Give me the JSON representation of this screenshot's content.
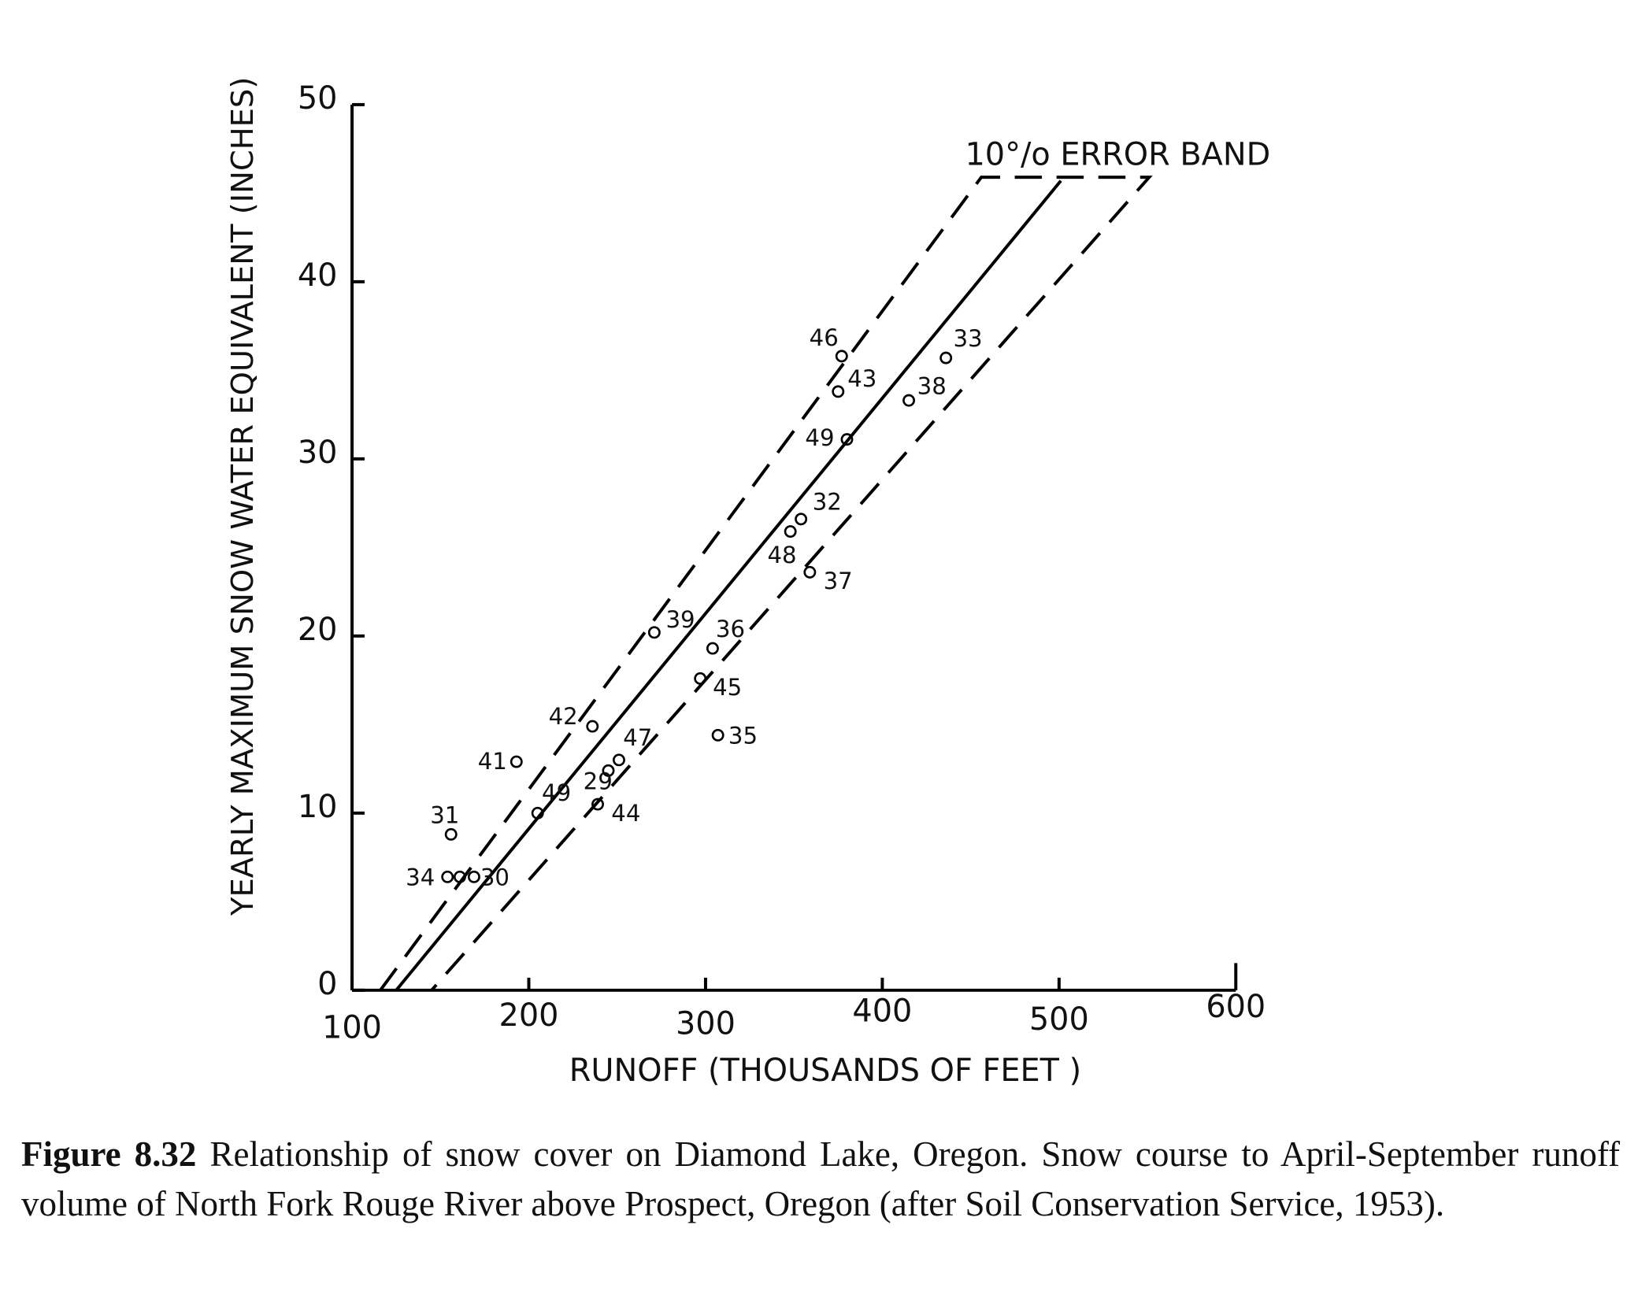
{
  "chart_data": {
    "type": "scatter",
    "x_label": "RUNOFF (THOUSANDS OF FEET )",
    "y_label": "YEARLY MAXIMUM SNOW WATER EQUIVALENT (INCHES)",
    "annotation": "10°/o ERROR BAND",
    "xlim": [
      100,
      600
    ],
    "ylim": [
      0,
      50
    ],
    "xticks": [
      100,
      200,
      300,
      400,
      500,
      600
    ],
    "yticks": [
      0,
      10,
      20,
      30,
      40,
      50
    ],
    "color": "#000000",
    "series": [
      {
        "x": [
          377,
          375,
          380,
          436,
          415,
          354,
          348,
          359,
          271,
          304,
          297,
          307,
          236,
          251,
          245,
          193,
          205,
          239,
          156,
          154,
          161,
          169
        ],
        "values": [
          35.8,
          33.8,
          31.1,
          35.7,
          33.3,
          26.6,
          25.9,
          23.6,
          20.2,
          19.3,
          17.6,
          14.4,
          14.9,
          13.0,
          12.4,
          12.9,
          10.0,
          10.5,
          8.8,
          6.4,
          6.4,
          6.4
        ],
        "labels": [
          "46",
          "43",
          "49",
          "33",
          "38",
          "32",
          "48",
          "37",
          "39",
          "36",
          "45",
          "35",
          "42",
          "47",
          "29",
          "41",
          "49",
          "44",
          "31",
          "34",
          null,
          "30"
        ]
      }
    ],
    "lines": [
      {
        "style": "solid",
        "x": [
          125,
          501
        ],
        "values": [
          0,
          45.7
        ]
      },
      {
        "style": "dashed",
        "x": [
          116,
          456,
          551,
          145
        ],
        "values": [
          0,
          45.9,
          45.9,
          0
        ]
      }
    ]
  },
  "caption": {
    "label": "Figure 8.32",
    "text": "Relationship of snow cover on Diamond Lake, Oregon. Snow course to April-September runoff volume of North Fork Rouge River above Prospect, Oregon (after Soil Conservation Service, 1953)."
  }
}
